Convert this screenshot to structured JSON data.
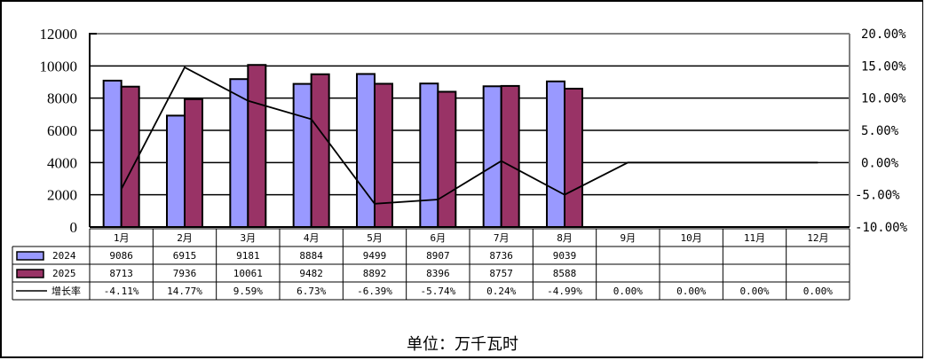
{
  "chart_data": {
    "type": "bar",
    "title": "",
    "xlabel": "",
    "ylabel": "",
    "unit_label": "单位：万千瓦时",
    "categories": [
      "1月",
      "2月",
      "3月",
      "4月",
      "5月",
      "6月",
      "7月",
      "8月",
      "9月",
      "10月",
      "11月",
      "12月"
    ],
    "series": [
      {
        "name": "2024",
        "type": "bar",
        "color": "#9999FF",
        "values": [
          9086,
          6915,
          9181,
          8884,
          9499,
          8907,
          8736,
          9039,
          null,
          null,
          null,
          null
        ]
      },
      {
        "name": "2025",
        "type": "bar",
        "color": "#993366",
        "values": [
          8713,
          7936,
          10061,
          9482,
          8892,
          8396,
          8757,
          8588,
          null,
          null,
          null,
          null
        ]
      },
      {
        "name": "增长率",
        "type": "line",
        "axis": "right",
        "color": "#000000",
        "values": [
          -4.11,
          14.77,
          9.59,
          6.73,
          -6.39,
          -5.74,
          0.24,
          -4.99,
          0.0,
          0.0,
          0.0,
          0.0
        ],
        "labels": [
          "-4.11%",
          "14.77%",
          "9.59%",
          "6.73%",
          "-6.39%",
          "-5.74%",
          "0.24%",
          "-4.99%",
          "0.00%",
          "0.00%",
          "0.00%",
          "0.00%"
        ]
      }
    ],
    "left_axis": {
      "ylim": [
        0,
        12000
      ],
      "ticks": [
        "12000",
        "10000",
        "8000",
        "6000",
        "4000",
        "2000",
        "0"
      ]
    },
    "right_axis": {
      "ylim": [
        -10,
        20
      ],
      "ticks": [
        "20.00%",
        "15.00%",
        "10.00%",
        "5.00%",
        "0.00%",
        "-5.00%",
        "-10.00%"
      ]
    },
    "grid": true,
    "legend_position": "data-table-left",
    "data_table": {
      "rows": [
        {
          "legend": "2024",
          "cells": [
            "9086",
            "6915",
            "9181",
            "8884",
            "9499",
            "8907",
            "8736",
            "9039",
            "",
            "",
            "",
            ""
          ]
        },
        {
          "legend": "2025",
          "cells": [
            "8713",
            "7936",
            "10061",
            "9482",
            "8892",
            "8396",
            "8757",
            "8588",
            "",
            "",
            "",
            ""
          ]
        },
        {
          "legend": "增长率",
          "cells": [
            "-4.11%",
            "14.77%",
            "9.59%",
            "6.73%",
            "-6.39%",
            "-5.74%",
            "0.24%",
            "-4.99%",
            "0.00%",
            "0.00%",
            "0.00%",
            "0.00%"
          ]
        }
      ]
    }
  }
}
